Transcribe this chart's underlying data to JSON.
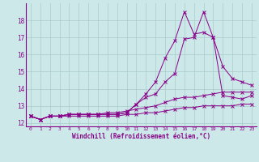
{
  "xlabel": "Windchill (Refroidissement éolien,°C)",
  "bg_color": "#cce8e8",
  "line_color": "#880088",
  "grid_color": "#aacccc",
  "xlim": [
    -0.5,
    23.5
  ],
  "ylim": [
    11.8,
    19.0
  ],
  "xticks": [
    0,
    1,
    2,
    3,
    4,
    5,
    6,
    7,
    8,
    9,
    10,
    11,
    12,
    13,
    14,
    15,
    16,
    17,
    18,
    19,
    20,
    21,
    22,
    23
  ],
  "yticks": [
    12,
    13,
    14,
    15,
    16,
    17,
    18
  ],
  "lines": [
    {
      "x": [
        0,
        1,
        2,
        3,
        4,
        5,
        6,
        7,
        8,
        9,
        10,
        11,
        12,
        13,
        14,
        15,
        16,
        17,
        18,
        19,
        20,
        21,
        22,
        23
      ],
      "y": [
        12.4,
        12.2,
        12.4,
        12.4,
        12.5,
        12.5,
        12.5,
        12.5,
        12.5,
        12.5,
        12.6,
        13.1,
        13.5,
        13.7,
        14.4,
        14.9,
        16.9,
        17.0,
        18.5,
        17.0,
        13.6,
        13.5,
        13.4,
        13.6
      ]
    },
    {
      "x": [
        0,
        1,
        2,
        3,
        4,
        5,
        6,
        7,
        8,
        9,
        10,
        11,
        12,
        13,
        14,
        15,
        16,
        17,
        18,
        19,
        20,
        21,
        22,
        23
      ],
      "y": [
        12.4,
        12.2,
        12.4,
        12.4,
        12.5,
        12.5,
        12.5,
        12.5,
        12.5,
        12.5,
        12.6,
        13.1,
        13.7,
        14.4,
        15.8,
        16.8,
        18.5,
        17.2,
        17.3,
        17.0,
        15.3,
        14.6,
        14.4,
        14.2
      ]
    },
    {
      "x": [
        0,
        1,
        2,
        3,
        4,
        5,
        6,
        7,
        8,
        9,
        10,
        11,
        12,
        13,
        14,
        15,
        16,
        17,
        18,
        19,
        20,
        21,
        22,
        23
      ],
      "y": [
        12.4,
        12.2,
        12.4,
        12.4,
        12.5,
        12.5,
        12.5,
        12.5,
        12.6,
        12.6,
        12.7,
        12.8,
        12.9,
        13.0,
        13.2,
        13.4,
        13.5,
        13.5,
        13.6,
        13.7,
        13.8,
        13.8,
        13.8,
        13.8
      ]
    },
    {
      "x": [
        0,
        1,
        2,
        3,
        4,
        5,
        6,
        7,
        8,
        9,
        10,
        11,
        12,
        13,
        14,
        15,
        16,
        17,
        18,
        19,
        20,
        21,
        22,
        23
      ],
      "y": [
        12.4,
        12.2,
        12.4,
        12.4,
        12.4,
        12.4,
        12.4,
        12.4,
        12.4,
        12.4,
        12.5,
        12.5,
        12.6,
        12.6,
        12.7,
        12.8,
        12.9,
        12.9,
        13.0,
        13.0,
        13.0,
        13.0,
        13.1,
        13.1
      ]
    }
  ]
}
